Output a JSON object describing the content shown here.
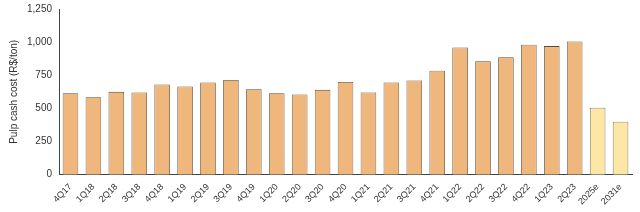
{
  "chart_data": {
    "type": "bar",
    "y_label": "Pulp cash cost (R$/ton)",
    "categories": [
      "4Q17",
      "1Q18",
      "2Q18",
      "3Q18",
      "4Q18",
      "1Q19",
      "2Q19",
      "3Q19",
      "4Q19",
      "1Q20",
      "2Q20",
      "3Q20",
      "4Q20",
      "1Q21",
      "2Q21",
      "3Q21",
      "4Q21",
      "1Q22",
      "2Q22",
      "3Q22",
      "4Q22",
      "1Q23",
      "2Q23",
      "2025e",
      "2031e"
    ],
    "values": [
      615,
      585,
      625,
      620,
      680,
      665,
      695,
      715,
      645,
      615,
      605,
      640,
      700,
      620,
      695,
      710,
      785,
      960,
      855,
      885,
      980,
      970,
      1005,
      505,
      400
    ],
    "colors": [
      "#efb77b",
      "#efb77b",
      "#efb77b",
      "#efb77b",
      "#efb77b",
      "#efb77b",
      "#efb77b",
      "#efb77b",
      "#efb77b",
      "#efb77b",
      "#efb77b",
      "#efb77b",
      "#efb77b",
      "#efb77b",
      "#efb77b",
      "#efb77b",
      "#efb77b",
      "#efb77b",
      "#efb77b",
      "#efb77b",
      "#efb77b",
      "#efb77b",
      "#efb77b",
      "#fde7a6",
      "#fde7a6"
    ],
    "ylim": [
      0,
      1250
    ],
    "yticks": [
      0,
      250,
      500,
      750,
      {
        "value": 1000,
        "label": "1,000"
      },
      {
        "value": 1250,
        "label": "1,250"
      }
    ],
    "grid": false
  }
}
